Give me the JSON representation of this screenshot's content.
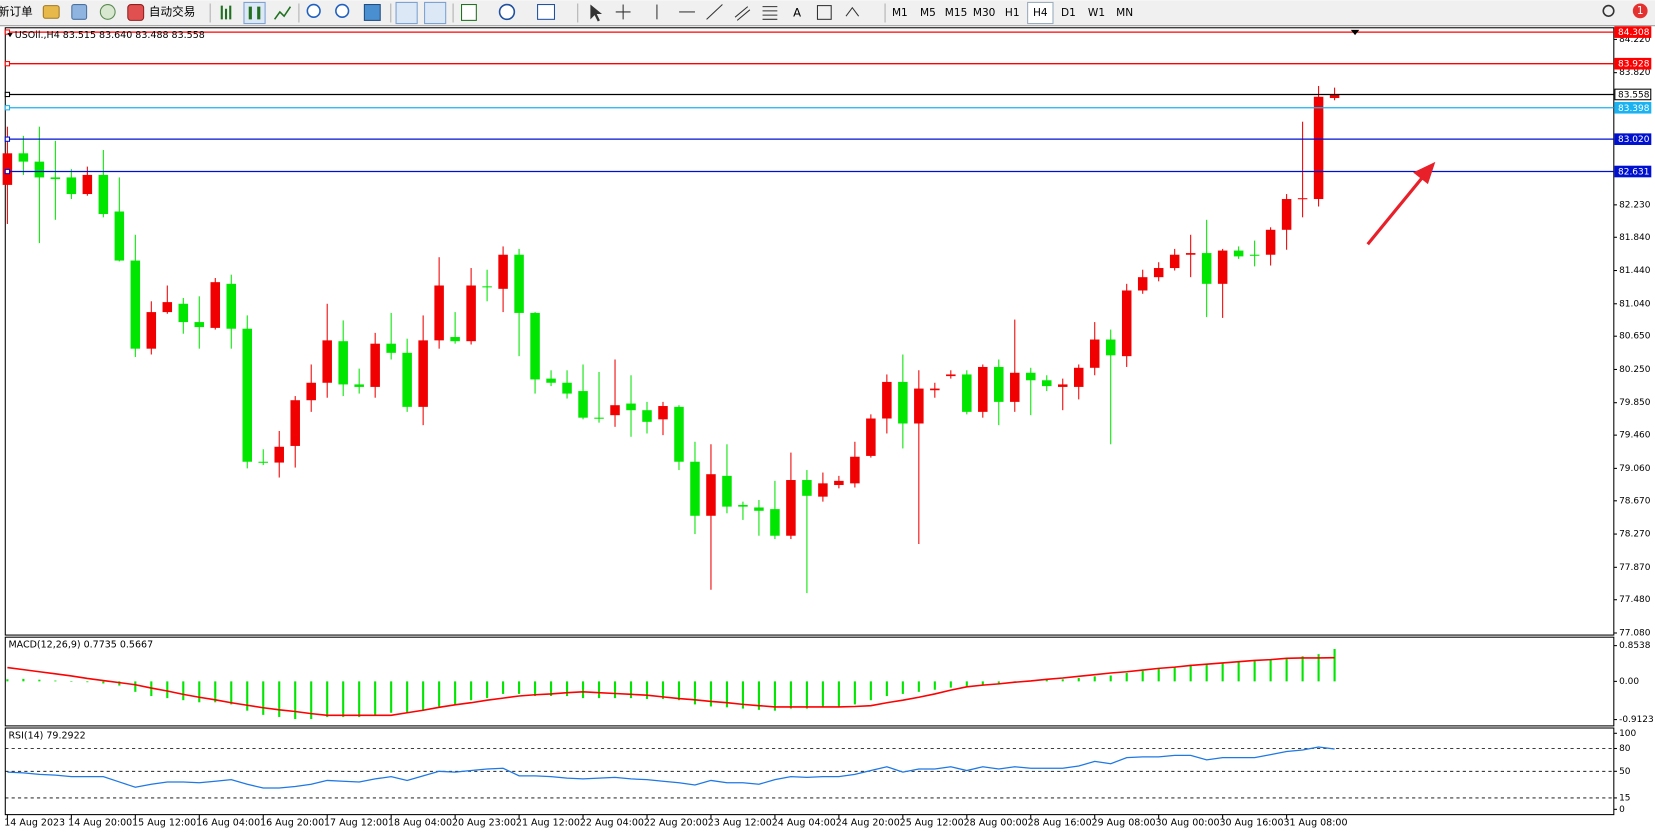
{
  "toolbar": {
    "new_order": "新订单",
    "auto_trading": "自动交易",
    "text_tool": "A",
    "timeframes": [
      "M1",
      "M5",
      "M15",
      "M30",
      "H1",
      "H4",
      "D1",
      "W1",
      "MN"
    ],
    "active_timeframe": "H4",
    "notifications": 1
  },
  "chart_data": [
    {
      "type": "candlestick",
      "title": "USOil.,H4  83.515 83.640 83.488 83.558",
      "categories": [
        "14 Aug 2023",
        null,
        null,
        null,
        "14 Aug 20:00",
        null,
        null,
        null,
        "15 Aug 12:00",
        null,
        null,
        null,
        "16 Aug 04:00",
        null,
        null,
        null,
        "16 Aug 20:00",
        null,
        null,
        null,
        "17 Aug 12:00",
        null,
        null,
        null,
        "18 Aug 04:00",
        null,
        null,
        null,
        "20 Aug 23:00",
        null,
        null,
        null,
        "21 Aug 12:00",
        null,
        null,
        null,
        "22 Aug 04:00",
        null,
        null,
        null,
        "22 Aug 20:00",
        null,
        null,
        null,
        "23 Aug 12:00",
        null,
        null,
        null,
        "24 Aug 04:00",
        null,
        null,
        null,
        "24 Aug 20:00",
        null,
        null,
        null,
        "25 Aug 12:00",
        null,
        null,
        null,
        "28 Aug 00:00",
        null,
        null,
        null,
        "28 Aug 16:00",
        null,
        null,
        null,
        "29 Aug 08:00",
        null,
        null,
        null,
        "30 Aug 00:00",
        null,
        null,
        null,
        "30 Aug 16:00",
        null,
        null,
        null,
        "31 Aug 08:00",
        null,
        null,
        null
      ],
      "open": [
        82.47,
        82.85,
        82.75,
        82.56,
        82.56,
        82.36,
        82.59,
        82.15,
        81.56,
        80.5,
        80.94,
        81.04,
        80.82,
        80.75,
        81.28,
        80.74,
        79.14,
        79.13,
        79.33,
        79.88,
        80.09,
        80.59,
        80.07,
        80.04,
        80.56,
        80.45,
        79.8,
        80.6,
        80.64,
        80.59,
        81.25,
        81.22,
        81.63,
        80.93,
        80.14,
        80.09,
        79.99,
        79.67,
        79.7,
        79.84,
        79.76,
        79.65,
        79.8,
        79.14,
        78.49,
        78.97,
        78.62,
        78.59,
        78.57,
        78.25,
        78.92,
        78.72,
        78.86,
        78.88,
        79.21,
        79.66,
        80.1,
        79.6,
        80.0,
        80.17,
        80.19,
        79.74,
        80.28,
        79.86,
        80.21,
        80.12,
        80.04,
        80.04,
        80.27,
        80.61,
        80.41,
        81.2,
        81.36,
        81.47,
        81.63,
        81.65,
        81.28,
        81.68,
        81.63,
        81.63,
        81.93,
        82.3,
        82.3,
        83.515
      ],
      "high": [
        83.17,
        83.06,
        83.17,
        83.0,
        82.66,
        82.69,
        82.89,
        82.56,
        81.87,
        81.07,
        81.26,
        81.11,
        81.13,
        81.35,
        81.39,
        80.9,
        79.29,
        79.51,
        79.93,
        80.31,
        81.04,
        80.84,
        80.26,
        80.69,
        80.93,
        80.62,
        80.9,
        81.6,
        80.94,
        81.47,
        81.45,
        81.73,
        81.7,
        80.94,
        80.24,
        80.24,
        80.31,
        80.22,
        80.37,
        80.18,
        79.86,
        79.86,
        79.82,
        79.38,
        79.35,
        79.35,
        78.66,
        78.68,
        78.91,
        79.25,
        79.04,
        79.01,
        78.97,
        79.38,
        79.71,
        80.19,
        80.43,
        80.24,
        80.09,
        80.24,
        80.24,
        80.31,
        80.37,
        80.85,
        80.27,
        80.18,
        80.14,
        80.31,
        80.82,
        80.73,
        81.28,
        81.45,
        81.54,
        81.7,
        81.87,
        82.05,
        81.7,
        81.73,
        81.8,
        81.96,
        82.36,
        83.23,
        83.66,
        83.64
      ],
      "low": [
        82.0,
        82.59,
        81.77,
        82.05,
        82.3,
        82.34,
        82.08,
        81.55,
        80.4,
        80.43,
        80.92,
        80.68,
        80.5,
        80.73,
        80.5,
        79.06,
        79.1,
        78.95,
        79.07,
        79.74,
        79.91,
        79.93,
        79.96,
        79.91,
        80.37,
        79.74,
        79.58,
        80.5,
        80.56,
        80.55,
        81.07,
        80.94,
        80.41,
        79.96,
        80.05,
        79.9,
        79.65,
        79.61,
        79.56,
        79.44,
        79.48,
        79.46,
        79.04,
        78.27,
        77.6,
        78.52,
        78.44,
        78.25,
        78.21,
        78.21,
        77.56,
        78.66,
        78.82,
        78.83,
        79.19,
        79.48,
        79.3,
        78.15,
        79.91,
        80.14,
        79.71,
        79.67,
        79.58,
        79.74,
        79.7,
        79.99,
        79.76,
        79.89,
        80.18,
        79.35,
        80.28,
        81.16,
        81.31,
        81.44,
        81.36,
        80.88,
        80.87,
        81.58,
        81.49,
        81.5,
        81.69,
        82.08,
        82.21,
        83.488
      ],
      "close": [
        82.85,
        82.75,
        82.56,
        82.54,
        82.36,
        82.59,
        82.12,
        81.56,
        80.5,
        80.94,
        81.06,
        80.82,
        80.76,
        81.3,
        80.74,
        79.14,
        79.13,
        79.32,
        79.88,
        80.09,
        80.6,
        80.07,
        80.04,
        80.56,
        80.45,
        79.8,
        80.6,
        81.26,
        80.59,
        81.26,
        81.25,
        81.63,
        80.93,
        80.13,
        80.09,
        79.96,
        79.67,
        79.66,
        79.82,
        79.76,
        79.62,
        79.81,
        79.14,
        78.49,
        78.99,
        78.6,
        78.6,
        78.55,
        78.25,
        78.92,
        78.73,
        78.88,
        78.91,
        79.2,
        79.66,
        80.1,
        79.6,
        80.02,
        80.02,
        80.19,
        79.74,
        80.28,
        79.86,
        80.21,
        80.12,
        80.05,
        80.07,
        80.27,
        80.61,
        80.42,
        81.2,
        81.36,
        81.47,
        81.63,
        81.65,
        81.28,
        81.68,
        81.61,
        81.63,
        81.93,
        82.3,
        82.31,
        83.53,
        83.558
      ],
      "up_color": "#f00000",
      "down_color": "#00e600",
      "ylim": [
        77.055,
        84.36
      ],
      "yticks": [
        {
          "value": 84.22,
          "label": "84.220"
        },
        {
          "value": 83.82,
          "label": "83.820"
        },
        {
          "value": 82.23,
          "label": "82.230"
        },
        {
          "value": 81.84,
          "label": "81.840"
        },
        {
          "value": 81.44,
          "label": "81.440"
        },
        {
          "value": 81.04,
          "label": "81.040"
        },
        {
          "value": 80.65,
          "label": "80.650"
        },
        {
          "value": 80.25,
          "label": "80.250"
        },
        {
          "value": 79.85,
          "label": "79.850"
        },
        {
          "value": 79.46,
          "label": "79.460"
        },
        {
          "value": 79.06,
          "label": "79.060"
        },
        {
          "value": 78.67,
          "label": "78.670"
        },
        {
          "value": 78.27,
          "label": "78.270"
        },
        {
          "value": 77.87,
          "label": "77.870"
        },
        {
          "value": 77.48,
          "label": "77.480"
        },
        {
          "value": 77.08,
          "label": "77.080"
        }
      ],
      "hlines": [
        {
          "value": 84.308,
          "color": "#ff0000"
        },
        {
          "value": 83.928,
          "color": "#ff0000"
        },
        {
          "value": 83.558,
          "color": "#000000"
        },
        {
          "value": 83.398,
          "color": "#1ab2f0"
        },
        {
          "value": 83.02,
          "label": "83.020",
          "color": "#0010d0"
        },
        {
          "value": 82.631,
          "color": "#0010d0"
        }
      ]
    },
    {
      "type": "macd",
      "title": "MACD(12,26,9) 0.7735 0.5667",
      "values": [
        0.05,
        0.06,
        0.04,
        0.02,
        0.0,
        -0.02,
        -0.05,
        -0.1,
        -0.25,
        -0.35,
        -0.4,
        -0.45,
        -0.5,
        -0.5,
        -0.55,
        -0.7,
        -0.8,
        -0.85,
        -0.9,
        -0.9,
        -0.85,
        -0.85,
        -0.85,
        -0.8,
        -0.75,
        -0.75,
        -0.7,
        -0.6,
        -0.55,
        -0.45,
        -0.4,
        -0.3,
        -0.3,
        -0.35,
        -0.35,
        -0.35,
        -0.4,
        -0.4,
        -0.4,
        -0.4,
        -0.42,
        -0.42,
        -0.45,
        -0.55,
        -0.6,
        -0.62,
        -0.65,
        -0.68,
        -0.7,
        -0.65,
        -0.65,
        -0.62,
        -0.6,
        -0.55,
        -0.45,
        -0.35,
        -0.3,
        -0.25,
        -0.2,
        -0.15,
        -0.12,
        -0.08,
        -0.05,
        -0.02,
        0.02,
        0.04,
        0.05,
        0.08,
        0.12,
        0.14,
        0.2,
        0.25,
        0.3,
        0.35,
        0.4,
        0.42,
        0.45,
        0.48,
        0.5,
        0.52,
        0.55,
        0.6,
        0.65,
        0.7735
      ],
      "color": "#00e600",
      "signal": [
        0.33,
        0.28,
        0.23,
        0.18,
        0.13,
        0.07,
        0.02,
        -0.03,
        -0.08,
        -0.16,
        -0.23,
        -0.31,
        -0.38,
        -0.44,
        -0.51,
        -0.57,
        -0.63,
        -0.68,
        -0.72,
        -0.77,
        -0.81,
        -0.81,
        -0.81,
        -0.81,
        -0.81,
        -0.75,
        -0.69,
        -0.62,
        -0.56,
        -0.51,
        -0.45,
        -0.4,
        -0.35,
        -0.32,
        -0.3,
        -0.27,
        -0.25,
        -0.27,
        -0.29,
        -0.31,
        -0.33,
        -0.37,
        -0.41,
        -0.44,
        -0.48,
        -0.51,
        -0.55,
        -0.58,
        -0.61,
        -0.61,
        -0.61,
        -0.61,
        -0.61,
        -0.6,
        -0.58,
        -0.51,
        -0.45,
        -0.38,
        -0.3,
        -0.21,
        -0.13,
        -0.09,
        -0.06,
        -0.02,
        0.01,
        0.05,
        0.08,
        0.12,
        0.16,
        0.2,
        0.23,
        0.27,
        0.31,
        0.34,
        0.38,
        0.41,
        0.44,
        0.47,
        0.5,
        0.52,
        0.55,
        0.56,
        0.56,
        0.5667
      ],
      "signal_color": "#ff0000",
      "ylim": [
        -0.9123,
        0.8538
      ],
      "yticks": [
        0.8538,
        {
          "value": 0,
          "label": "0.00"
        },
        -0.9123
      ]
    },
    {
      "type": "line",
      "title": "RSI(14) 79.2922",
      "values": [
        49,
        48,
        46,
        45,
        43,
        43,
        43,
        36,
        29,
        33,
        36,
        36,
        35,
        37,
        39,
        33,
        28,
        28,
        30,
        33,
        38,
        37,
        36,
        40,
        43,
        38,
        44,
        50,
        49,
        51,
        53,
        54,
        44,
        44,
        43,
        41,
        40,
        41,
        42,
        40,
        39,
        37,
        35,
        32,
        38,
        35,
        35,
        33,
        39,
        43,
        42,
        43,
        43,
        46,
        51,
        56,
        49,
        53,
        53,
        56,
        51,
        56,
        53,
        56,
        54,
        54,
        54,
        57,
        63,
        60,
        68,
        69,
        69,
        71,
        71,
        65,
        68,
        68,
        68,
        72,
        76,
        78,
        82,
        79.2922
      ],
      "color": "#1e78e6",
      "ylim": [
        0,
        100
      ],
      "yticks": [
        100,
        80,
        50,
        15,
        0
      ],
      "grid": "dashed"
    }
  ]
}
